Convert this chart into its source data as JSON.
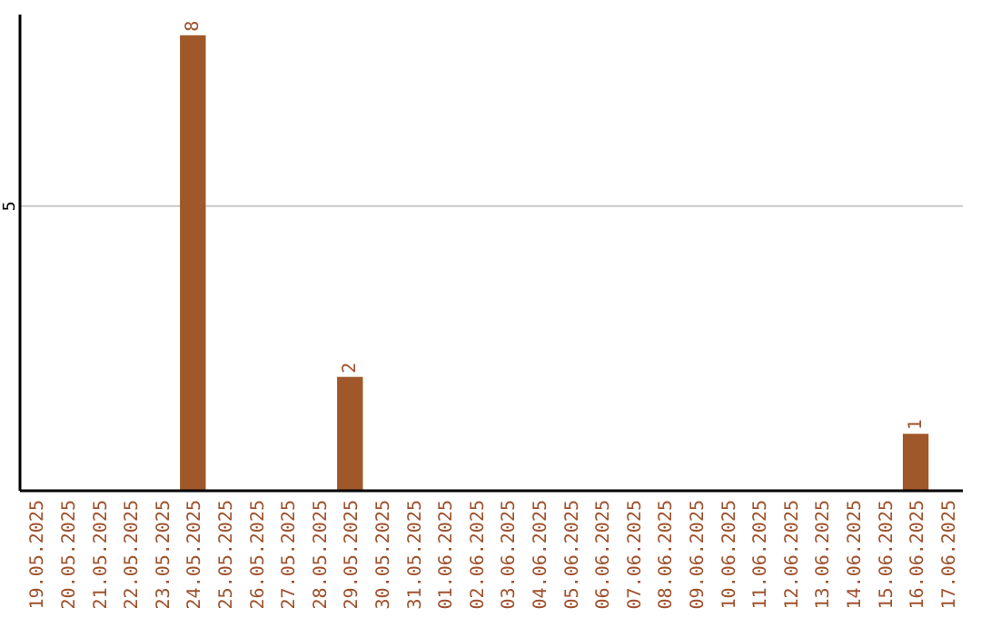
{
  "chart_data": {
    "type": "bar",
    "categories": [
      "19.05.2025",
      "20.05.2025",
      "21.05.2025",
      "22.05.2025",
      "23.05.2025",
      "24.05.2025",
      "25.05.2025",
      "26.05.2025",
      "27.05.2025",
      "28.05.2025",
      "29.05.2025",
      "30.05.2025",
      "31.05.2025",
      "01.06.2025",
      "02.06.2025",
      "03.06.2025",
      "04.06.2025",
      "05.06.2025",
      "06.06.2025",
      "07.06.2025",
      "08.06.2025",
      "09.06.2025",
      "10.06.2025",
      "11.06.2025",
      "12.06.2025",
      "13.06.2025",
      "14.06.2025",
      "15.06.2025",
      "16.06.2025",
      "17.06.2025"
    ],
    "values": [
      0,
      0,
      0,
      0,
      0,
      8,
      0,
      0,
      0,
      0,
      2,
      0,
      0,
      0,
      0,
      0,
      0,
      0,
      0,
      0,
      0,
      0,
      0,
      0,
      0,
      0,
      0,
      0,
      1,
      0
    ],
    "value_labels": [
      null,
      null,
      null,
      null,
      null,
      "8",
      null,
      null,
      null,
      null,
      "2",
      null,
      null,
      null,
      null,
      null,
      null,
      null,
      null,
      null,
      null,
      null,
      null,
      null,
      null,
      null,
      null,
      null,
      "1",
      null
    ],
    "color": "#a0572a",
    "ylim": [
      0,
      8.3
    ],
    "yticks": [
      5
    ],
    "grid": "y"
  }
}
